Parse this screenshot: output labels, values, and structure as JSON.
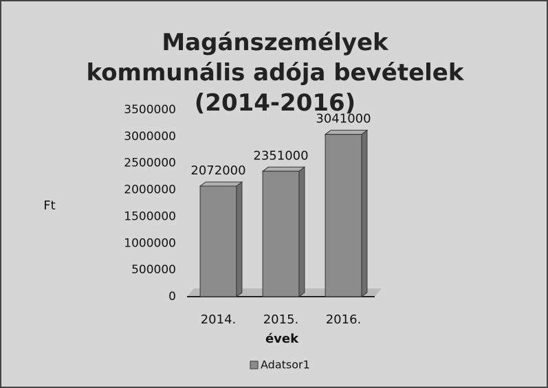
{
  "chart_data": {
    "type": "bar",
    "title": "Magánszemélyek kommunális adója bevételek (2014-2016)",
    "categories": [
      "2014.",
      "2015.",
      "2016."
    ],
    "values": [
      2072000,
      2351000,
      3041000
    ],
    "color": "#8c8c8c",
    "ylim": [
      0,
      3500000
    ],
    "yticks": [
      0,
      500000,
      1000000,
      1500000,
      2000000,
      2500000,
      3000000,
      3500000
    ],
    "ylabel": "Ft",
    "xlabel": "évek",
    "legend": "Adatsor1",
    "legend_position": "bottom",
    "grid": false
  }
}
